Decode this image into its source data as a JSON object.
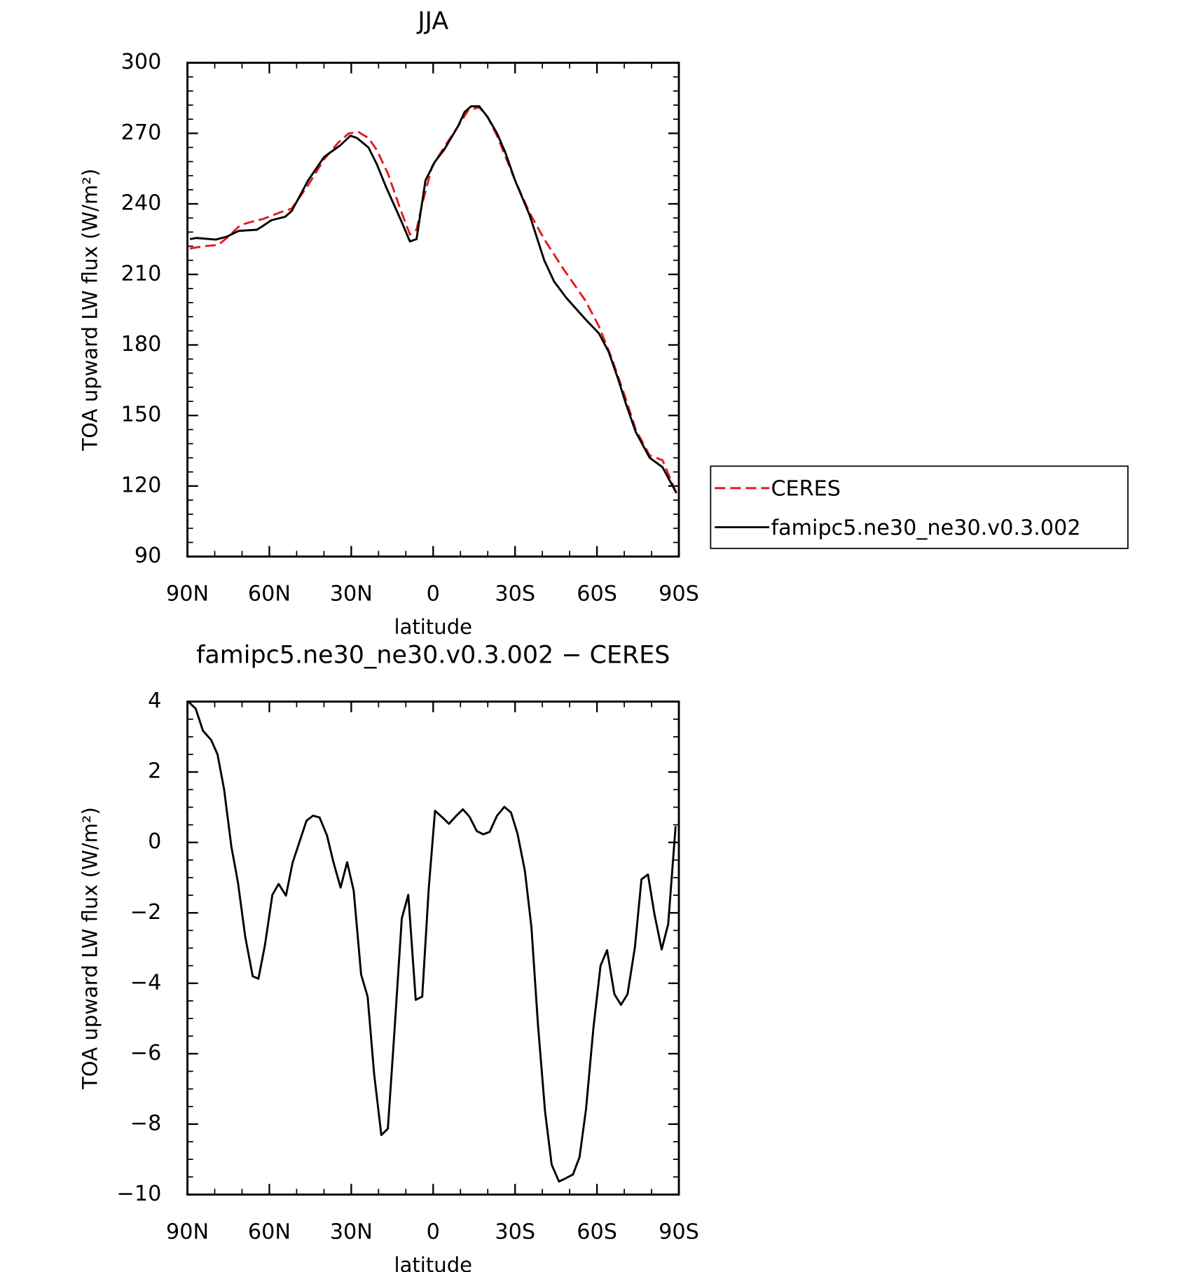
{
  "chart_data": [
    {
      "type": "line",
      "title": "JJA",
      "xlabel": "latitude",
      "ylabel": "TOA upward LW flux (W/m²)",
      "xlim": [
        90,
        -90
      ],
      "xticks": [
        {
          "value": 90,
          "label": "90N"
        },
        {
          "value": 60,
          "label": "60N"
        },
        {
          "value": 30,
          "label": "30N"
        },
        0,
        {
          "value": -30,
          "label": "30S"
        },
        {
          "value": -60,
          "label": "60S"
        },
        {
          "value": -90,
          "label": "90S"
        }
      ],
      "ylim": [
        90,
        300
      ],
      "yticks": [
        90,
        120,
        150,
        180,
        210,
        240,
        270,
        300
      ],
      "legend": "right",
      "series": [
        {
          "name": "CERES",
          "color": "#e41a1c",
          "dash": true,
          "x": [
            89.1,
            84.0,
            78.7,
            75.1,
            70.6,
            66.1,
            62.5,
            55.7,
            51.8,
            45.8,
            39.9,
            34.8,
            30.9,
            27.3,
            23.7,
            20.7,
            16.6,
            11.8,
            8.5,
            6.1,
            4.0,
            0.4,
            -4.0,
            -9.1,
            -13.0,
            -16.9,
            -19.9,
            -23.4,
            -30.0,
            -35.4,
            -40.7,
            -47.3,
            -55.7,
            -60.7,
            -65.2,
            -67.6,
            -70.6,
            -74.2,
            -79.3,
            -84.0,
            -89.1
          ],
          "values": [
            221,
            222,
            222.5,
            226,
            231,
            232.5,
            233.5,
            236.5,
            238,
            248,
            259,
            266,
            270,
            270.5,
            268,
            263,
            253,
            237,
            227,
            229,
            240,
            256,
            264,
            273,
            280,
            281,
            277,
            269,
            250,
            236,
            225,
            213,
            199,
            188,
            175,
            167,
            157,
            144,
            133,
            131,
            117
          ]
        },
        {
          "name": "famipc5.ne30_ne30.v0.3.002",
          "color": "#000000",
          "dash": false,
          "x": [
            89.1,
            86.7,
            79.6,
            75.7,
            71.2,
            64.6,
            62.5,
            59.3,
            54.2,
            51.8,
            45.8,
            39.9,
            33.9,
            30.3,
            27.9,
            23.7,
            20.7,
            17.2,
            11.8,
            8.5,
            6.1,
            2.8,
            -0.7,
            -4.0,
            -9.1,
            -11.5,
            -13.9,
            -16.9,
            -19.9,
            -23.4,
            -26.4,
            -30.0,
            -35.4,
            -40.7,
            -44.3,
            -48.8,
            -55.7,
            -60.7,
            -64.3,
            -67.6,
            -70.6,
            -74.2,
            -79.3,
            -84.0,
            -89.1
          ],
          "values": [
            225,
            225.5,
            224.8,
            226,
            228.5,
            229,
            230.5,
            233,
            234.5,
            237,
            250,
            260,
            265,
            269,
            268,
            264,
            257,
            247,
            233,
            224,
            225,
            250,
            258,
            263,
            273,
            279,
            281.5,
            281.5,
            277,
            270,
            262,
            250,
            235,
            216,
            207,
            200,
            191,
            185,
            177,
            166,
            155,
            143,
            132,
            128,
            117
          ]
        }
      ]
    },
    {
      "type": "line",
      "title": "famipc5.ne30_ne30.v0.3.002 − CERES",
      "xlabel": "latitude",
      "ylabel": "TOA upward LW flux (W/m²)",
      "xlim": [
        90,
        -90
      ],
      "xticks": [
        {
          "value": 90,
          "label": "90N"
        },
        {
          "value": 60,
          "label": "60N"
        },
        {
          "value": 30,
          "label": "30N"
        },
        0,
        {
          "value": -30,
          "label": "30S"
        },
        {
          "value": -60,
          "label": "60S"
        },
        {
          "value": -90,
          "label": "90S"
        }
      ],
      "ylim": [
        -10,
        4
      ],
      "yticks": [
        {
          "value": -10,
          "label": "−10"
        },
        {
          "value": -8,
          "label": "−8"
        },
        {
          "value": -6,
          "label": "−6"
        },
        {
          "value": -4,
          "label": "−4"
        },
        {
          "value": -2,
          "label": "−2"
        },
        0,
        2,
        4
      ],
      "color": "#000000",
      "x": [
        89.7,
        87.0,
        84.3,
        81.3,
        79.0,
        76.6,
        73.9,
        71.5,
        68.8,
        66.1,
        64.0,
        61.6,
        58.9,
        56.6,
        53.9,
        51.5,
        46.4,
        44.0,
        41.6,
        38.9,
        36.6,
        33.9,
        31.5,
        29.1,
        26.4,
        24.0,
        21.6,
        19.0,
        16.6,
        14.2,
        11.5,
        9.1,
        6.4,
        4.0,
        1.6,
        -0.7,
        -3.4,
        -5.8,
        -8.5,
        -10.9,
        -13.3,
        -16.0,
        -18.4,
        -20.7,
        -23.4,
        -26.1,
        -28.5,
        -30.9,
        -33.6,
        -36.0,
        -38.4,
        -41.0,
        -43.4,
        -46.1,
        -48.5,
        -51.2,
        -53.6,
        -56.0,
        -58.7,
        -61.3,
        -63.7,
        -66.4,
        -68.8,
        -71.2,
        -73.9,
        -76.3,
        -78.7,
        -81.0,
        -83.7,
        -86.1,
        -88.8
      ],
      "values": [
        4,
        3.8,
        3.17,
        2.91,
        2.5,
        1.52,
        -0.12,
        -1.14,
        -2.69,
        -3.8,
        -3.87,
        -2.92,
        -1.49,
        -1.18,
        -1.51,
        -0.58,
        0.62,
        0.76,
        0.71,
        0.2,
        -0.54,
        -1.28,
        -0.56,
        -1.37,
        -3.75,
        -4.38,
        -6.58,
        -8.31,
        -8.13,
        -5.4,
        -2.16,
        -1.49,
        -4.47,
        -4.38,
        -1.3,
        0.9,
        0.71,
        0.53,
        0.76,
        0.94,
        0.73,
        0.32,
        0.23,
        0.3,
        0.76,
        1.01,
        0.85,
        0.25,
        -0.81,
        -2.41,
        -5.17,
        -7.64,
        -9.15,
        -9.63,
        -9.54,
        -9.43,
        -8.94,
        -7.57,
        -5.28,
        -3.5,
        -3.06,
        -4.31,
        -4.61,
        -4.31,
        -2.97,
        -1.05,
        -0.91,
        -2.02,
        -3.04,
        -2.32,
        0.46
      ]
    }
  ]
}
